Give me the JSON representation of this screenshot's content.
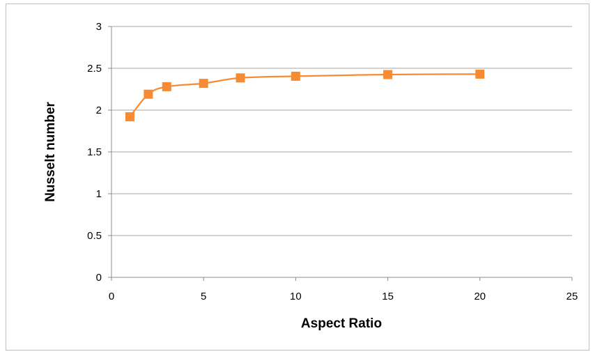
{
  "chart_data": {
    "type": "line",
    "title": "",
    "xlabel": "Aspect Ratio",
    "ylabel": "Nusselt number",
    "xlim": [
      0,
      25
    ],
    "ylim": [
      0,
      3
    ],
    "xticks": [
      0,
      5,
      10,
      15,
      20,
      25
    ],
    "yticks": [
      0,
      0.5,
      1,
      1.5,
      2,
      2.5,
      3
    ],
    "grid": {
      "horizontal": true,
      "vertical": false
    },
    "legend": "none",
    "series": [
      {
        "x": [
          1,
          2,
          3,
          5,
          7,
          10,
          15,
          20
        ],
        "y": [
          1.92,
          2.19,
          2.28,
          2.32,
          2.385,
          2.405,
          2.425,
          2.43
        ],
        "color": "#F68B33",
        "marker": "square",
        "smooth": true
      }
    ]
  }
}
